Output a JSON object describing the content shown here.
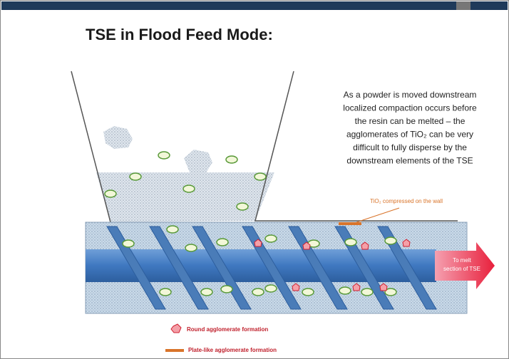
{
  "title": "TSE in Flood Feed Mode:",
  "description": [
    "As a powder is moved downstream",
    "localized compaction occurs before",
    "the resin can be melted – the",
    "agglomerates of TiO₂ can be very",
    "difficult to fully disperse by the",
    "downstream elements of the TSE"
  ],
  "callout": "TiO₂ compressed on the wall",
  "arrow_label": [
    "To melt",
    "section of TSE"
  ],
  "legend": [
    "Round agglomerate formation",
    "Plate-like agglomerate formation"
  ]
}
